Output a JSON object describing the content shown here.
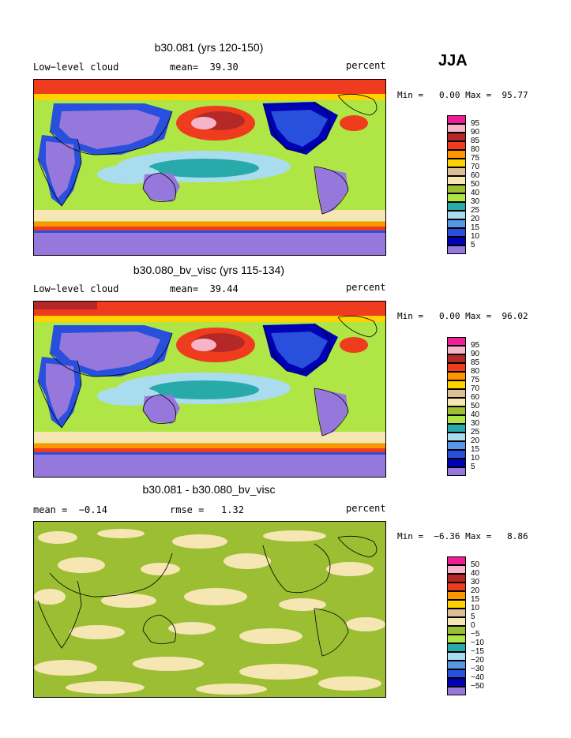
{
  "season": "JJA",
  "colors": {
    "magenta": "#f01e96",
    "pink": "#f5b4c8",
    "darkred": "#b42828",
    "red": "#f03c1e",
    "orange": "#ff9600",
    "yellow": "#ffd200",
    "wheat": "#f5e6b4",
    "tan": "#dcbe96",
    "olive": "#9bbe32",
    "lightgreen": "#afe646",
    "teal": "#28aaaa",
    "lightblue": "#aadcf0",
    "skyblue": "#5a96e6",
    "blue": "#2850dc",
    "navy": "#0000b4",
    "purple": "#9678dc",
    "coast": "#000000"
  },
  "panels": [
    {
      "title": "b30.081 (yrs 120-150)",
      "left_label": "Low−level cloud",
      "mid_label": "mean=  39.30",
      "right_label": "percent",
      "minmax": "Min =   0.00 Max =  95.77",
      "colorbar": [
        "95",
        "90",
        "85",
        "80",
        "75",
        "70",
        "60",
        "50",
        "40",
        "30",
        "25",
        "20",
        "15",
        "10",
        "5"
      ]
    },
    {
      "title": "b30.080_bv_visc (yrs 115-134)",
      "left_label": "Low−level cloud",
      "mid_label": "mean=  39.44",
      "right_label": "percent",
      "minmax": "Min =   0.00 Max =  96.02",
      "colorbar": [
        "95",
        "90",
        "85",
        "80",
        "75",
        "70",
        "60",
        "50",
        "40",
        "30",
        "25",
        "20",
        "15",
        "10",
        "5"
      ]
    },
    {
      "title": "b30.081 - b30.080_bv_visc",
      "left_label": "mean =  −0.14",
      "mid_label": "rmse =   1.32",
      "right_label": "percent",
      "minmax": "Min =  −6.36 Max =   8.86",
      "colorbar": [
        "50",
        "40",
        "30",
        "20",
        "15",
        "10",
        "5",
        "0",
        "−5",
        "−10",
        "−15",
        "−20",
        "−30",
        "−40",
        "−50"
      ]
    }
  ],
  "chart_data": [
    {
      "type": "heatmap",
      "title": "b30.081 (yrs 120-150)",
      "variable": "Low−level cloud",
      "units": "percent",
      "mean": 39.3,
      "min": 0.0,
      "max": 95.77,
      "levels": [
        5,
        10,
        15,
        20,
        25,
        30,
        40,
        50,
        60,
        70,
        75,
        80,
        85,
        90,
        95
      ]
    },
    {
      "type": "heatmap",
      "title": "b30.080_bv_visc (yrs 115-134)",
      "variable": "Low−level cloud",
      "units": "percent",
      "mean": 39.44,
      "min": 0.0,
      "max": 96.02,
      "levels": [
        5,
        10,
        15,
        20,
        25,
        30,
        40,
        50,
        60,
        70,
        75,
        80,
        85,
        90,
        95
      ]
    },
    {
      "type": "heatmap",
      "title": "b30.081 - b30.080_bv_visc",
      "units": "percent",
      "mean": -0.14,
      "rmse": 1.32,
      "min": -6.36,
      "max": 8.86,
      "levels": [
        -50,
        -40,
        -30,
        -20,
        -15,
        -10,
        -5,
        0,
        5,
        10,
        15,
        20,
        30,
        40,
        50
      ]
    }
  ]
}
